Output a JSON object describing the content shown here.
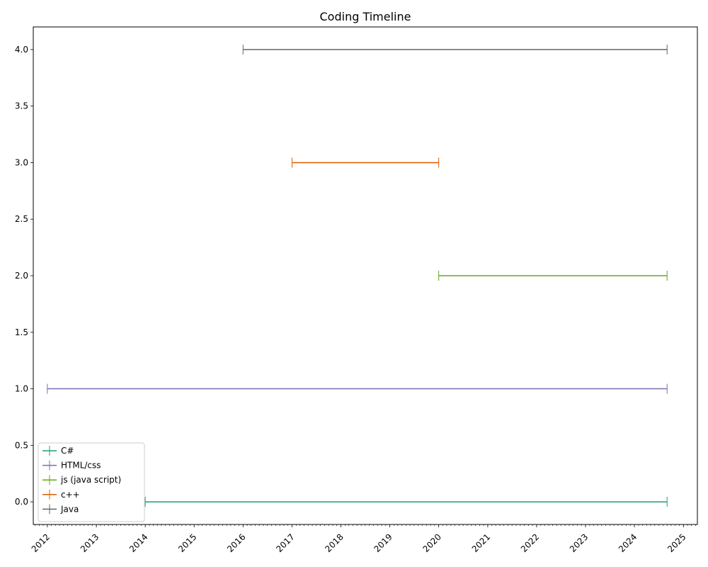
{
  "chart_data": {
    "type": "line",
    "title": "Coding Timeline",
    "xlabel": "",
    "ylabel": "",
    "x_axis_type": "date",
    "xlim": [
      "2011-09-18",
      "2025-04-15"
    ],
    "ylim": [
      -0.2,
      4.2
    ],
    "x_ticks": [
      "2012",
      "2013",
      "2014",
      "2015",
      "2016",
      "2017",
      "2018",
      "2019",
      "2020",
      "2021",
      "2022",
      "2023",
      "2024",
      "2025"
    ],
    "x_tick_values": [
      "2012-01-01",
      "2013-01-01",
      "2014-01-01",
      "2015-01-01",
      "2016-01-01",
      "2017-01-01",
      "2018-01-01",
      "2019-01-01",
      "2020-01-01",
      "2021-01-01",
      "2022-01-01",
      "2023-01-01",
      "2024-01-01",
      "2025-01-01"
    ],
    "x_minor_ticks": "monthly",
    "y_ticks": [
      "0.0",
      "0.5",
      "1.0",
      "1.5",
      "2.0",
      "2.5",
      "3.0",
      "3.5",
      "4.0"
    ],
    "y_tick_values": [
      0,
      0.5,
      1,
      1.5,
      2,
      2.5,
      3,
      3.5,
      4
    ],
    "grid": false,
    "legend_position": "lower-left",
    "series": [
      {
        "name": "C#",
        "color": "#1b9e77",
        "x": [
          "2014-01-01",
          "2024-09-01"
        ],
        "y": [
          0,
          0
        ]
      },
      {
        "name": "HTML/css",
        "color": "#7570b3",
        "x": [
          "2012-01-01",
          "2024-09-01"
        ],
        "y": [
          1,
          1
        ]
      },
      {
        "name": "js (java script)",
        "color": "#66a61e",
        "x": [
          "2020-01-01",
          "2024-09-01"
        ],
        "y": [
          2,
          2
        ]
      },
      {
        "name": "c++",
        "color": "#d95f02",
        "x": [
          "2017-01-01",
          "2020-01-01"
        ],
        "y": [
          3,
          3
        ]
      },
      {
        "name": "Java",
        "color": "#666666",
        "x": [
          "2016-01-01",
          "2024-09-01"
        ],
        "y": [
          4,
          4
        ]
      }
    ]
  }
}
